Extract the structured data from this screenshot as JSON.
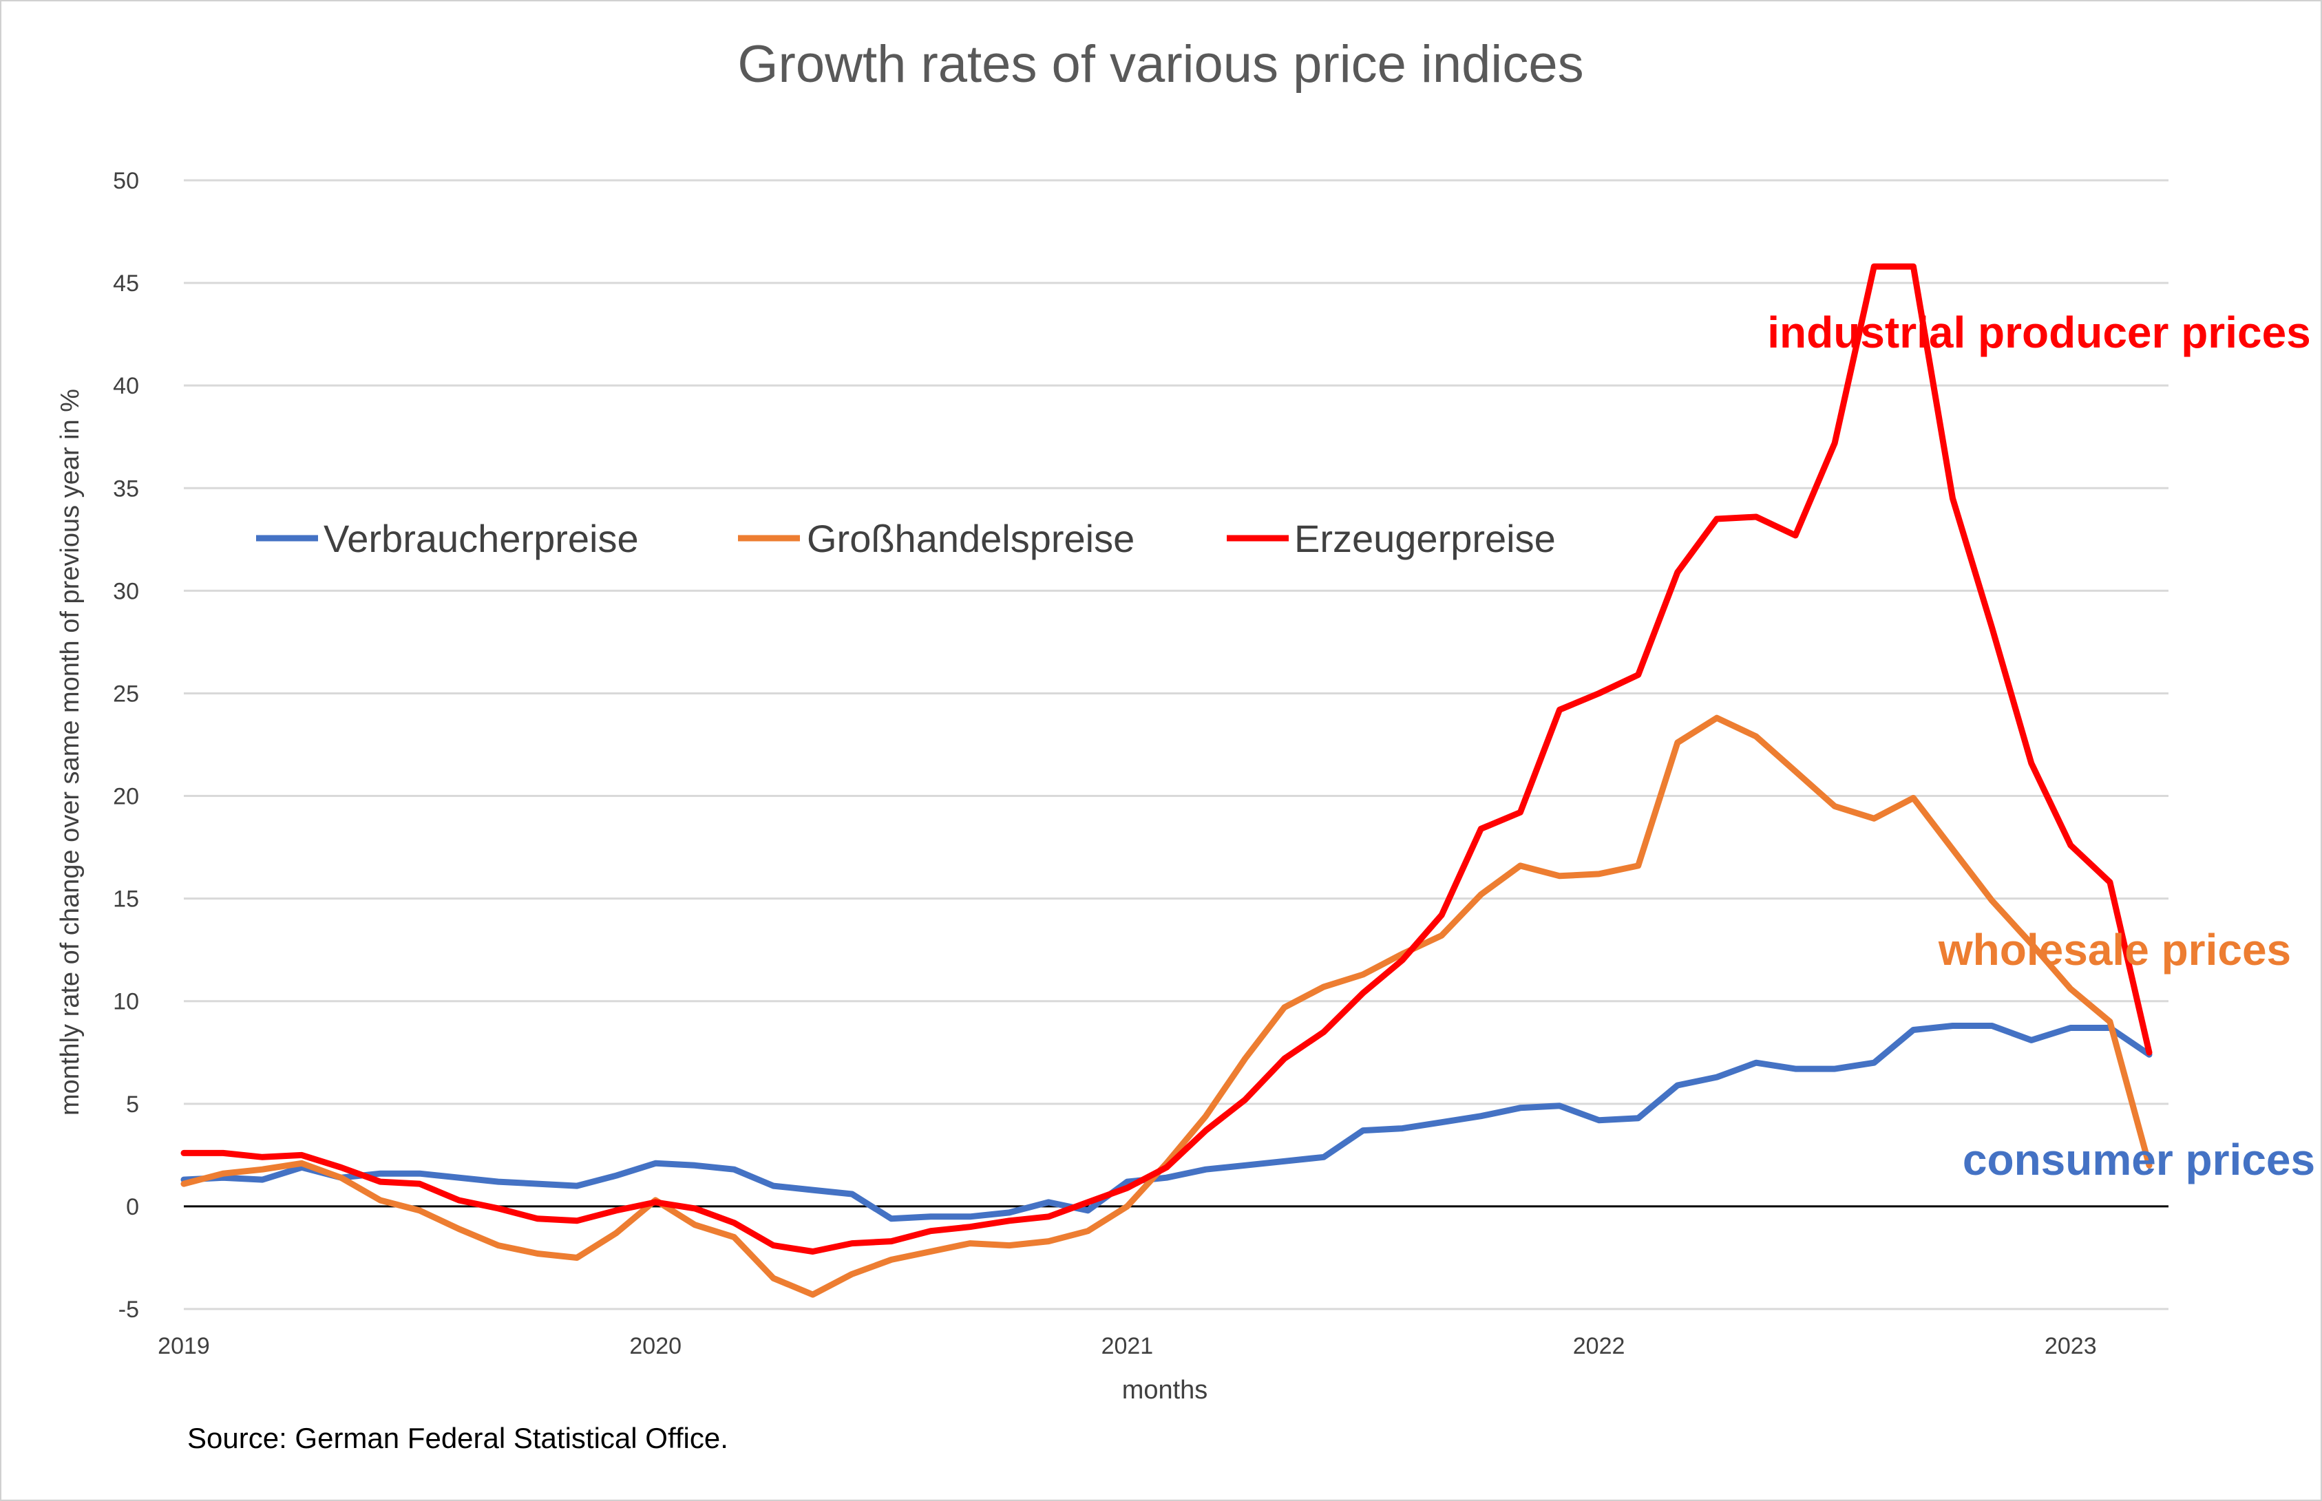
{
  "chart_data": {
    "type": "line",
    "title": "Growth rates of various price indices",
    "xlabel": "months",
    "ylabel": "monthly rate of change over same month of previous year in %",
    "ylim": [
      -5,
      50
    ],
    "yticks": [
      -5,
      0,
      5,
      10,
      15,
      20,
      25,
      30,
      35,
      40,
      45,
      50
    ],
    "xticks": [
      {
        "label": "2019",
        "month_index": 0
      },
      {
        "label": "2020",
        "month_index": 12
      },
      {
        "label": "2021",
        "month_index": 24
      },
      {
        "label": "2022",
        "month_index": 36
      },
      {
        "label": "2023",
        "month_index": 48
      }
    ],
    "grid": true,
    "legend_position": "upper-left, inside plot",
    "source": "Source: German Federal Statistical Office.",
    "start_month": "2019-01",
    "series": [
      {
        "name": "Verbraucherpreise",
        "color": "#4472C4",
        "annotation": "consumer prices",
        "values": [
          1.3,
          1.4,
          1.3,
          1.9,
          1.4,
          1.6,
          1.6,
          1.4,
          1.2,
          1.1,
          1.0,
          1.5,
          2.1,
          2.0,
          1.8,
          1.0,
          0.8,
          0.6,
          -0.6,
          -0.5,
          -0.5,
          -0.3,
          0.2,
          -0.2,
          1.2,
          1.4,
          1.8,
          2.0,
          2.2,
          2.4,
          3.7,
          3.8,
          4.1,
          4.4,
          4.8,
          4.9,
          4.2,
          4.3,
          5.9,
          6.3,
          7.0,
          6.7,
          6.7,
          7.0,
          8.6,
          8.8,
          8.8,
          8.1,
          8.7,
          8.7,
          7.4
        ]
      },
      {
        "name": "Großhandelspreise",
        "color": "#ED7D31",
        "annotation": "wholesale prices",
        "values": [
          1.1,
          1.6,
          1.8,
          2.1,
          1.4,
          0.3,
          -0.2,
          -1.1,
          -1.9,
          -2.3,
          -2.5,
          -1.3,
          0.3,
          -0.9,
          -1.5,
          -3.5,
          -4.3,
          -3.3,
          -2.6,
          -2.2,
          -1.8,
          -1.9,
          -1.7,
          -1.2,
          0.0,
          2.1,
          4.4,
          7.2,
          9.7,
          10.7,
          11.3,
          12.3,
          13.2,
          15.2,
          16.6,
          16.1,
          16.2,
          16.6,
          22.6,
          23.8,
          22.9,
          21.2,
          19.5,
          18.9,
          19.9,
          17.4,
          14.9,
          12.8,
          10.6,
          9.0,
          2.0
        ]
      },
      {
        "name": "Erzeugerpreise",
        "color": "#FF0000",
        "annotation": "industrial producer prices",
        "values": [
          2.6,
          2.6,
          2.4,
          2.5,
          1.9,
          1.2,
          1.1,
          0.3,
          -0.1,
          -0.6,
          -0.7,
          -0.2,
          0.2,
          -0.1,
          -0.8,
          -1.9,
          -2.2,
          -1.8,
          -1.7,
          -1.2,
          -1.0,
          -0.7,
          -0.5,
          0.2,
          0.9,
          1.9,
          3.7,
          5.2,
          7.2,
          8.5,
          10.4,
          12.0,
          14.2,
          18.4,
          19.2,
          24.2,
          25.0,
          25.9,
          30.9,
          33.5,
          33.6,
          32.7,
          37.2,
          45.8,
          45.8,
          34.5,
          28.2,
          21.6,
          17.6,
          15.8,
          7.5
        ]
      }
    ]
  }
}
